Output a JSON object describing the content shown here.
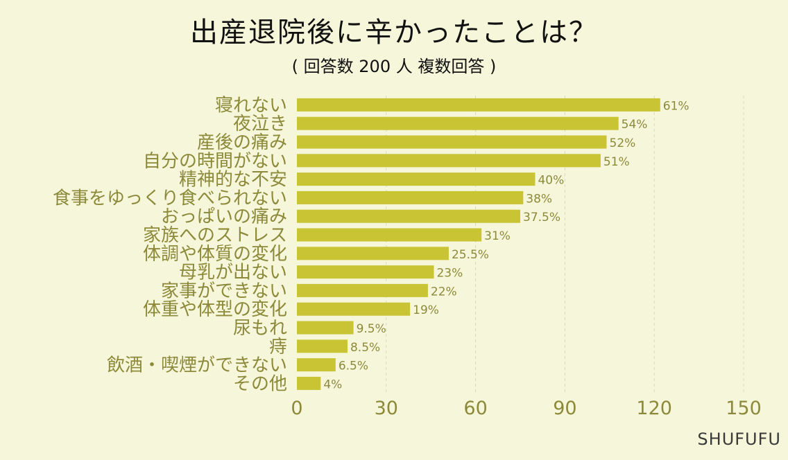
{
  "chart_data": {
    "type": "bar",
    "orientation": "horizontal",
    "title": "出産退院後に辛かったことは？",
    "subtitle": "( 回答数 200 人  複数回答 )",
    "categories": [
      "寝れない",
      "夜泣き",
      "産後の痛み",
      "自分の時間がない",
      "精神的な不安",
      "食事をゆっくり食べられない",
      "おっぱいの痛み",
      "家族へのストレス",
      "体調や体質の変化",
      "母乳が出ない",
      "家事ができない",
      "体重や体型の変化",
      "尿もれ",
      "痔",
      "飲酒・喫煙ができない",
      "その他"
    ],
    "values": [
      122,
      108,
      104,
      102,
      80,
      76,
      75,
      62,
      51,
      46,
      44,
      38,
      19,
      17,
      13,
      8
    ],
    "data_labels": [
      "61%",
      "54%",
      "52%",
      "51%",
      "40%",
      "38%",
      "37.5%",
      "31%",
      "25.5%",
      "23%",
      "22%",
      "19%",
      "9.5%",
      "8.5%",
      "6.5%",
      "4%"
    ],
    "xlim": [
      0,
      150
    ],
    "xticks": [
      "0",
      "30",
      "60",
      "90",
      "120",
      "150"
    ],
    "grid": true,
    "colors": {
      "bar": "#c9c434",
      "tick": "#8c8a3a",
      "category": "#8c8a3a",
      "grid": "#d8d8c0"
    }
  },
  "brand": "SHUFUFU"
}
